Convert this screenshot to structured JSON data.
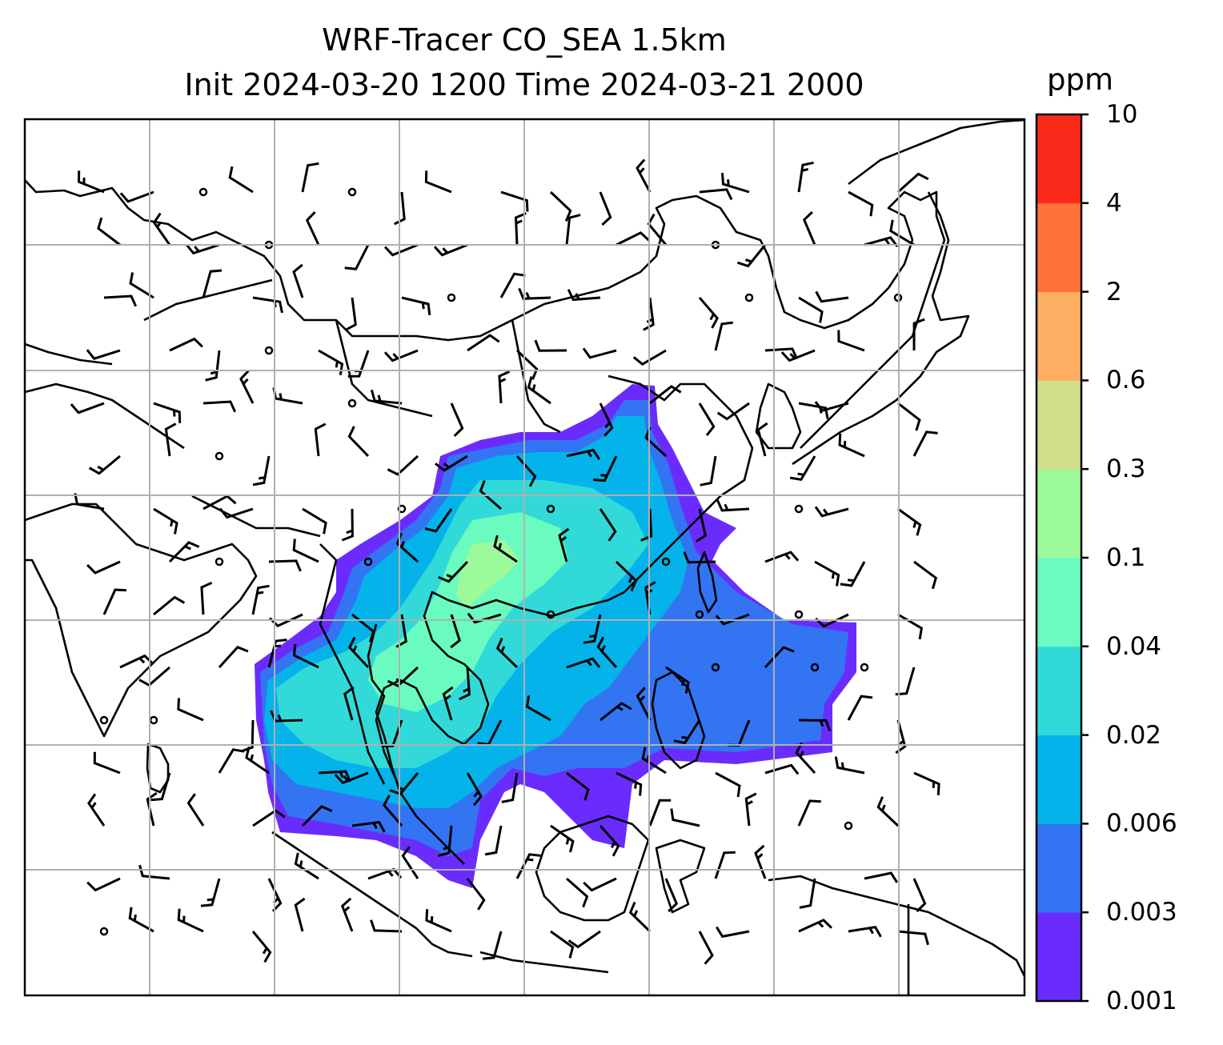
{
  "title_line1": "WRF-Tracer CO_SEA 1.5km",
  "title_line2": "Init 2024-03-20 1200 Time 2024-03-21 2000",
  "colorbar": {
    "unit": "ppm",
    "levels": [
      "0.001",
      "0.003",
      "0.006",
      "0.02",
      "0.04",
      "0.1",
      "0.3",
      "0.6",
      "2",
      "4",
      "10"
    ],
    "colors": [
      "#6a2cfc",
      "#3374f3",
      "#03b3ea",
      "#31dad8",
      "#69fbc0",
      "#9cfa9b",
      "#d0e08a",
      "#feae63",
      "#ff733a",
      "#fc2a1b"
    ]
  },
  "map": {
    "variable": "CO tracer concentration (ppm)",
    "plume_colors": {
      "outer": "#6a2cfc",
      "low": "#3374f3",
      "mid": "#03b3ea",
      "high": "#31dad8",
      "peak": "#69fbc0",
      "core": "#9cfa9b"
    },
    "gridlines": "on",
    "overlay": "wind barbs"
  }
}
